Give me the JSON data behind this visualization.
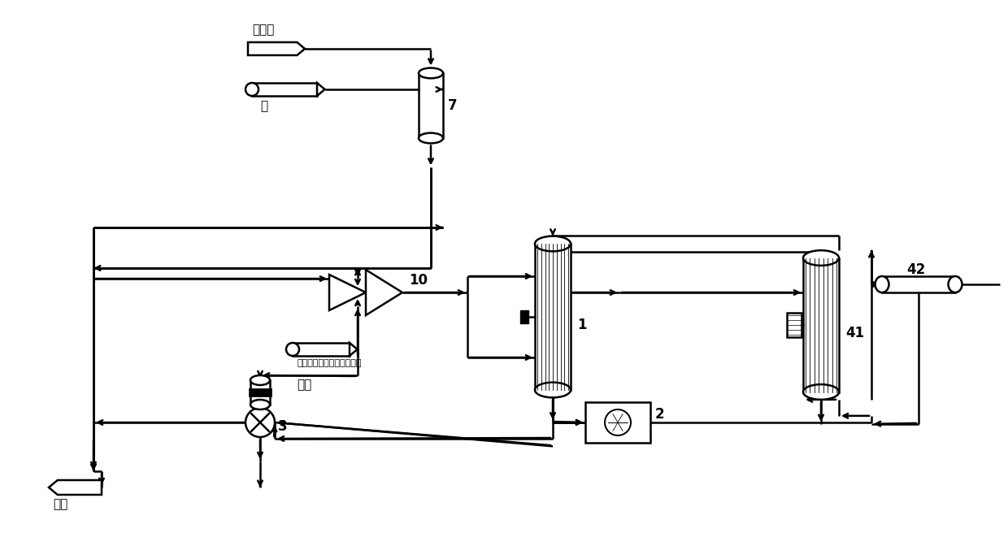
{
  "bg": "#ffffff",
  "lc": "#000000",
  "lw": 1.8,
  "labels": {
    "chibaoqi": "弛放气",
    "shui": "水",
    "yuanliao": "原料",
    "fresh_gas": "来自转化工序的新鲜转化气",
    "jiachun": "甲醒",
    "n7": "7",
    "n10": "10",
    "n1": "1",
    "n2": "2",
    "n3": "3",
    "n41": "41",
    "n42": "42"
  },
  "figsize": [
    12.4,
    6.61
  ],
  "dpi": 100
}
